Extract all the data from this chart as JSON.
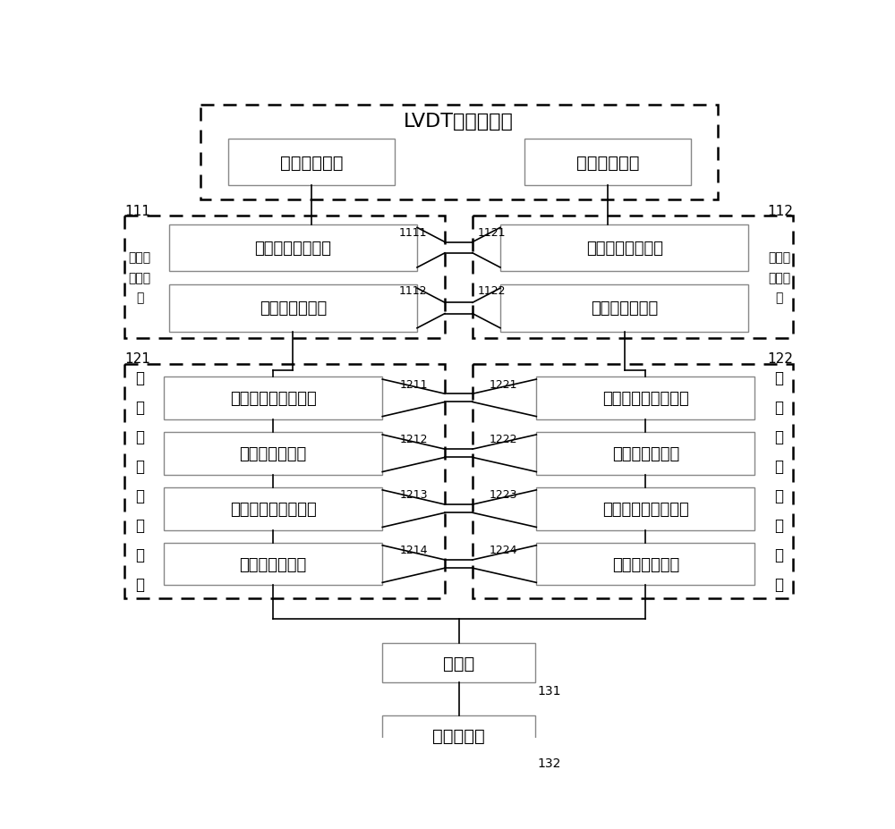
{
  "title": "LVDT位移传感器",
  "box1_1": "第一次级线圈",
  "box1_2": "第二次级线圈",
  "box2_1": "第一信号调理电路",
  "box2_2": "第二信号调理电路",
  "box3_1": "第一模数转换器",
  "box3_2": "第二模数转换器",
  "label_111": "111",
  "label_112": "112",
  "label_1111": "1111",
  "label_1121": "1121",
  "label_1112": "1112",
  "label_1122": "1122",
  "side_label_left1": "第一预\n处理电\n路",
  "side_label_right1": "第二预\n处理电\n路",
  "label_121": "121",
  "label_122": "122",
  "label_1211": "1211",
  "label_1221": "1221",
  "label_1212": "1212",
  "label_1222": "1222",
  "label_1213": "1213",
  "label_1223": "1223",
  "label_1214": "1214",
  "label_1224": "1224",
  "box4_1": "第一符号数转换单元",
  "box4_2": "第二符号数转换单元",
  "box5_1": "第一带通滤波器",
  "box5_2": "第二带通滤波器",
  "box6_1": "第一绝对值求取单元",
  "box6_2": "第二绝对值求取单元",
  "box7_1": "第一低通滤波器",
  "box7_2": "第二低通滤波器",
  "side_label_left2_lines": [
    "第",
    "一",
    "信",
    "号",
    "滤",
    "波",
    "电",
    "路"
  ],
  "side_label_right2_lines": [
    "第",
    "二",
    "信",
    "号",
    "滤",
    "波",
    "电",
    "路"
  ],
  "box8": "减法器",
  "box9": "第一查找器",
  "label_131": "131",
  "label_132": "132",
  "bg_color": "#ffffff",
  "box_fill": "#ffffff",
  "box_edge": "#000000",
  "text_color": "#000000"
}
